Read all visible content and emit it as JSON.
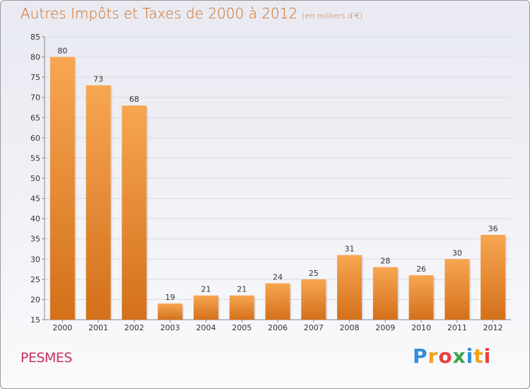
{
  "chart_data": {
    "type": "bar",
    "title": "Autres Impôts et Taxes de 2000 à 2012",
    "subtitle": "(en milliers d'€)",
    "categories": [
      "2000",
      "2001",
      "2002",
      "2003",
      "2004",
      "2005",
      "2006",
      "2007",
      "2008",
      "2009",
      "2010",
      "2011",
      "2012"
    ],
    "values": [
      80,
      73,
      68,
      19,
      21,
      21,
      24,
      25,
      31,
      28,
      26,
      30,
      36
    ],
    "xlabel": "",
    "ylabel": "",
    "ylim": [
      15,
      85
    ],
    "yticks": [
      15,
      20,
      25,
      30,
      35,
      40,
      45,
      50,
      55,
      60,
      65,
      70,
      75,
      80,
      85
    ],
    "grid": true,
    "legend": "none",
    "bar_color": "#e8862a"
  },
  "footer": {
    "commune": "PESMES",
    "logo_letters": [
      "P",
      "r",
      "o",
      "x",
      "i",
      "t",
      "i"
    ],
    "logo_colors": [
      "#2f8fd8",
      "#f0a020",
      "#e84040",
      "#3aa64a",
      "#2f8fd8",
      "#f0a020",
      "#e84040"
    ]
  }
}
